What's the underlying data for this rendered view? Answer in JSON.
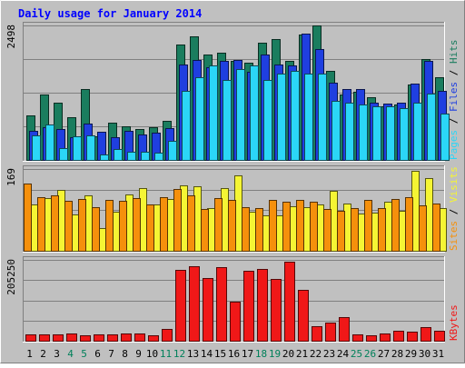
{
  "chart_data": {
    "type": "bar",
    "title": "Daily usage for January 2014",
    "categories": [
      "1",
      "2",
      "3",
      "4",
      "5",
      "6",
      "7",
      "8",
      "9",
      "10",
      "11",
      "12",
      "13",
      "14",
      "15",
      "16",
      "17",
      "18",
      "19",
      "20",
      "21",
      "22",
      "23",
      "24",
      "25",
      "26",
      "27",
      "28",
      "29",
      "30",
      "31"
    ],
    "weekend_days": [
      "4",
      "5",
      "11",
      "12",
      "18",
      "19",
      "25",
      "26"
    ],
    "panels": [
      {
        "name": "traffic",
        "ymax_label": "2498",
        "ymax": 2498,
        "right_labels": [
          "Pages",
          "Files",
          "Hits"
        ],
        "series": [
          {
            "name": "Hits",
            "color": "#1a7d5e",
            "values": [
              820,
              1220,
              1060,
              790,
              1310,
              440,
              690,
              630,
              580,
              610,
              720,
              2150,
              2290,
              1960,
              2000,
              1840,
              1810,
              2180,
              2250,
              1840,
              2330,
              2500,
              1660,
              1210,
              1260,
              1160,
              1000,
              1030,
              1400,
              1880,
              1530
            ]
          },
          {
            "name": "Files",
            "color": "#1f3fe0",
            "values": [
              540,
              610,
              570,
              420,
              680,
              530,
              420,
              540,
              480,
              510,
              590,
              1780,
              1860,
              1720,
              1840,
              1850,
              1640,
              1960,
              1780,
              1750,
              2350,
              2060,
              1430,
              1310,
              1310,
              1070,
              1040,
              1060,
              1410,
              1840,
              1280
            ]
          },
          {
            "name": "Pages",
            "color": "#2bd6f7",
            "values": [
              450,
              660,
              220,
              440,
              450,
              100,
              200,
              150,
              150,
              130,
              360,
              1280,
              1540,
              1760,
              1480,
              1680,
              1750,
              1480,
              1610,
              1660,
              1600,
              1600,
              1100,
              1070,
              1030,
              1000,
              1000,
              960,
              1060,
              1240,
              860
            ]
          }
        ]
      },
      {
        "name": "visitors",
        "ymax_label": "169",
        "ymax": 169,
        "right_labels": [
          "Sites",
          "Visits"
        ],
        "series": [
          {
            "name": "Visits",
            "color": "#f5f534",
            "values": [
              95,
              109,
              125,
              76,
              114,
              47,
              80,
              116,
              129,
              95,
              107,
              136,
              134,
              89,
              129,
              155,
              81,
              73,
              74,
              92,
              90,
              95,
              124,
              97,
              77,
              78,
              102,
              83,
              166,
              151,
              88
            ]
          },
          {
            "name": "Sites",
            "color": "#f5900c",
            "values": [
              139,
              111,
              115,
              103,
              107,
              91,
              105,
              103,
              108,
              96,
              111,
              128,
              114,
              86,
              109,
              106,
              91,
              89,
              105,
              101,
              106,
              101,
              86,
              82,
              89,
              105,
              89,
              107,
              111,
              94,
              98
            ]
          }
        ]
      },
      {
        "name": "volume",
        "ymax_label": "205250",
        "ymax": 205250,
        "right_labels": [
          "KBytes"
        ],
        "series": [
          {
            "name": "KBytes",
            "color": "#f01818",
            "values": [
              17000,
              17000,
              16000,
              18000,
              14000,
              15000,
              15000,
              19000,
              18000,
              14000,
              30000,
              180000,
              190000,
              160000,
              186000,
              100000,
              178000,
              183000,
              156000,
              201000,
              130000,
              36000,
              45000,
              60000,
              17000,
              13000,
              18000,
              26000,
              24000,
              34000,
              25000
            ]
          }
        ]
      }
    ],
    "grid": true,
    "legend": "right-vertical"
  }
}
